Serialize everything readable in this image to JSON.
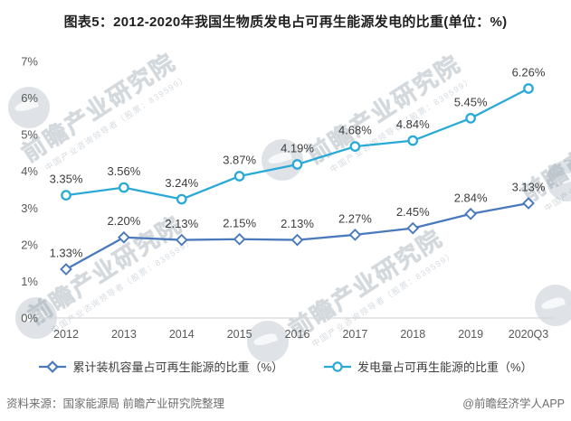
{
  "chart_data": {
    "type": "line",
    "title": "图表5：2012-2020年我国生物质发电占可再生能源发电的比重(单位：%)",
    "categories": [
      "2012",
      "2013",
      "2014",
      "2015",
      "2016",
      "2017",
      "2018",
      "2019",
      "2020Q3"
    ],
    "series": [
      {
        "name": "累计装机容量占可再生能源的比重（%）",
        "marker": "diamond",
        "color": "#4A79BC",
        "values": [
          1.33,
          2.2,
          2.13,
          2.15,
          2.13,
          2.27,
          2.45,
          2.84,
          3.13
        ]
      },
      {
        "name": "发电量占可再生能源的比重（%）",
        "marker": "circle",
        "color": "#29A9D6",
        "values": [
          3.35,
          3.56,
          3.24,
          3.87,
          4.19,
          4.68,
          4.84,
          5.45,
          6.26
        ]
      }
    ],
    "xlabel": "",
    "ylabel": "",
    "ylim": [
      0,
      7
    ],
    "ytick_labels": [
      "0%",
      "1%",
      "2%",
      "3%",
      "4%",
      "5%",
      "6%",
      "7%"
    ],
    "grid": false,
    "legend_position": "bottom",
    "data_label_format": "0.00%",
    "axis_color": "#d6d6d6"
  },
  "footer": {
    "source": "资料来源：国家能源局 前瞻产业研究院整理",
    "credit": "@前瞻经济学人APP"
  },
  "watermark": {
    "text": "前瞻产业研究院",
    "subtext": "中国产业咨询领导者（股票：839599）"
  }
}
